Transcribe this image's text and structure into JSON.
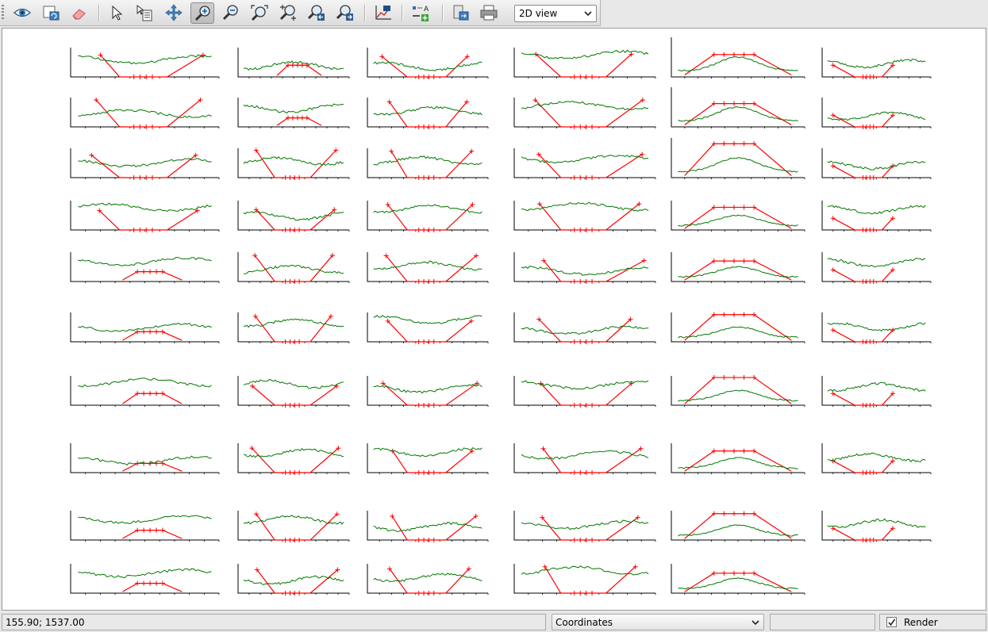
{
  "toolbar": {
    "buttons": [
      {
        "name": "view-button",
        "icon": "eye-icon"
      },
      {
        "name": "refresh-button",
        "icon": "refresh-icon"
      },
      {
        "name": "eraser-button",
        "icon": "eraser-icon"
      },
      {
        "name": "select-button",
        "icon": "arrow-pointer-icon"
      },
      {
        "name": "info-select-button",
        "icon": "arrow-list-icon"
      },
      {
        "name": "pan-button",
        "icon": "move-icon"
      },
      {
        "name": "zoom-in-button",
        "icon": "zoom-in-icon",
        "active": true
      },
      {
        "name": "zoom-out-button",
        "icon": "zoom-out-icon"
      },
      {
        "name": "zoom-fit-button",
        "icon": "zoom-fit-icon"
      },
      {
        "name": "zoom-selection-button",
        "icon": "zoom-plus-icon"
      },
      {
        "name": "zoom-previous-button",
        "icon": "zoom-previous-icon"
      },
      {
        "name": "zoom-next-button",
        "icon": "zoom-next-icon"
      },
      {
        "name": "plot-settings-button",
        "icon": "chart-icon"
      },
      {
        "name": "legend-button",
        "icon": "legend-icon"
      },
      {
        "name": "export-button",
        "icon": "export-icon"
      },
      {
        "name": "print-button",
        "icon": "printer-icon"
      }
    ],
    "view_mode": "2D view"
  },
  "status": {
    "coordinates": "155.90; 1537.00",
    "mode_select": "Coordinates",
    "render_label": "Render",
    "render_checked": true
  },
  "colors": {
    "fitted_profile": "#ff0000",
    "measured_profile": "#007700"
  }
}
